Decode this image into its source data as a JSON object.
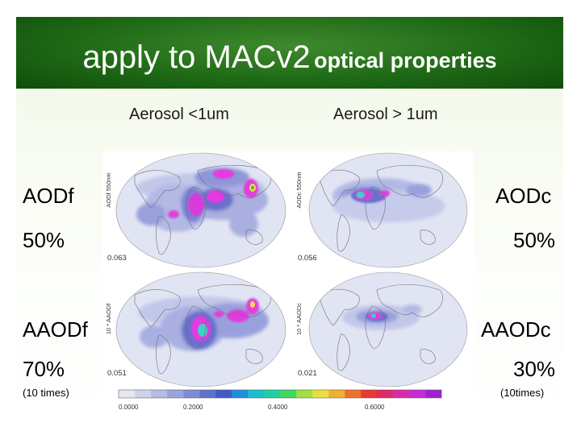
{
  "title": {
    "main": "apply to MACv2",
    "sub": "optical properties"
  },
  "columns": {
    "fine": "Aerosol <1um",
    "coarse": "Aerosol > 1um"
  },
  "left_labels": {
    "aodf": "AODf",
    "aodf_pct": "50%",
    "aaodf": "AAODf",
    "aaodf_pct": "70%",
    "note": "(10 times)"
  },
  "right_labels": {
    "aodc": "AODc",
    "aodc_pct": "50%",
    "aaodc": "AAODc",
    "aaodc_pct": "30%",
    "note": "(10times)"
  },
  "maps": {
    "aodf": {
      "axis_label": "AODf 550nm",
      "mean": "0.063"
    },
    "aodc": {
      "axis_label": "AODc 550nm",
      "mean": "0.056"
    },
    "aaodf": {
      "axis_label": "10 * AAODf",
      "mean": "0.051"
    },
    "aaodc": {
      "axis_label": "10 * AAODc",
      "mean": "0.021"
    }
  },
  "colorbar": {
    "ticks": [
      "0.0000",
      "0.2000",
      "0.4000",
      "0.6000"
    ],
    "colors": [
      "#e6e6ee",
      "#cfd2ea",
      "#b6bce4",
      "#9aa4dc",
      "#7e8cd6",
      "#5f72cf",
      "#3f5ac8",
      "#1f8fd8",
      "#18c0d0",
      "#1fd0a0",
      "#40d860",
      "#a0e040",
      "#e8e040",
      "#f0b030",
      "#f07028",
      "#e83a30",
      "#e02a6a",
      "#d82aa8",
      "#c82ad8",
      "#a020d0"
    ]
  },
  "colors": {
    "title_bg": "#1f6a16",
    "title_text": "#ffffff",
    "ocean": "#dfe3f2",
    "light": "#b9bfe4",
    "mid": "#7e86d6",
    "high": "#3f3fc4",
    "hot": "#e83ae0",
    "peak": "#ffd84a",
    "core": "#3fd0d0"
  }
}
